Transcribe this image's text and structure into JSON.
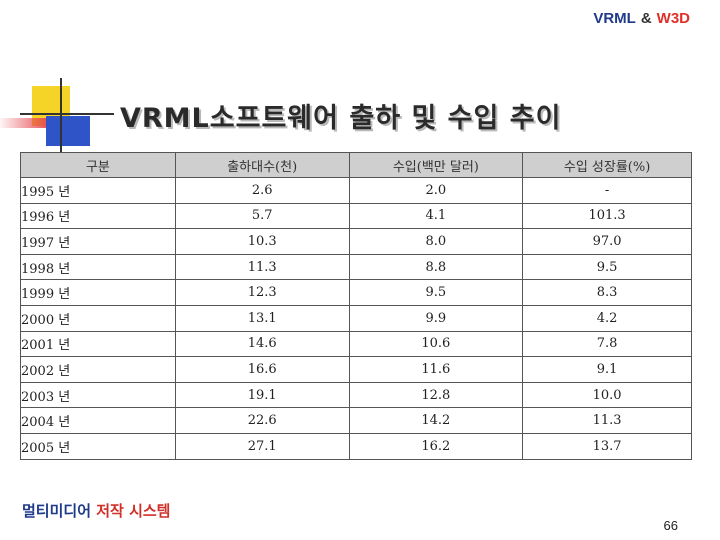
{
  "header": {
    "part1": "VRML",
    "amp": "&",
    "part2": "W3D"
  },
  "title": "VRML소프트웨어 출하 및 수입 추이",
  "table": {
    "columns": [
      "구분",
      "출하대수(천)",
      "수입(백만 달러)",
      "수입 성장률(%)"
    ],
    "rows": [
      [
        "1995 년",
        "2.6",
        "2.0",
        "-"
      ],
      [
        "1996 년",
        "5.7",
        "4.1",
        "101.3"
      ],
      [
        "1997 년",
        "10.3",
        "8.0",
        "97.0"
      ],
      [
        "1998 년",
        "11.3",
        "8.8",
        "9.5"
      ],
      [
        "1999 년",
        "12.3",
        "9.5",
        "8.3"
      ],
      [
        "2000 년",
        "13.1",
        "9.9",
        "4.2"
      ],
      [
        "2001 년",
        "14.6",
        "10.6",
        "7.8"
      ],
      [
        "2002 년",
        "16.6",
        "11.6",
        "9.1"
      ],
      [
        "2003 년",
        "19.1",
        "12.8",
        "10.0"
      ],
      [
        "2004 년",
        "22.6",
        "14.2",
        "11.3"
      ],
      [
        "2005 년",
        "27.1",
        "16.2",
        "13.7"
      ]
    ]
  },
  "footer": {
    "part1": "멀티미디어",
    "part2": "저작 시스템"
  },
  "page_number": "66"
}
